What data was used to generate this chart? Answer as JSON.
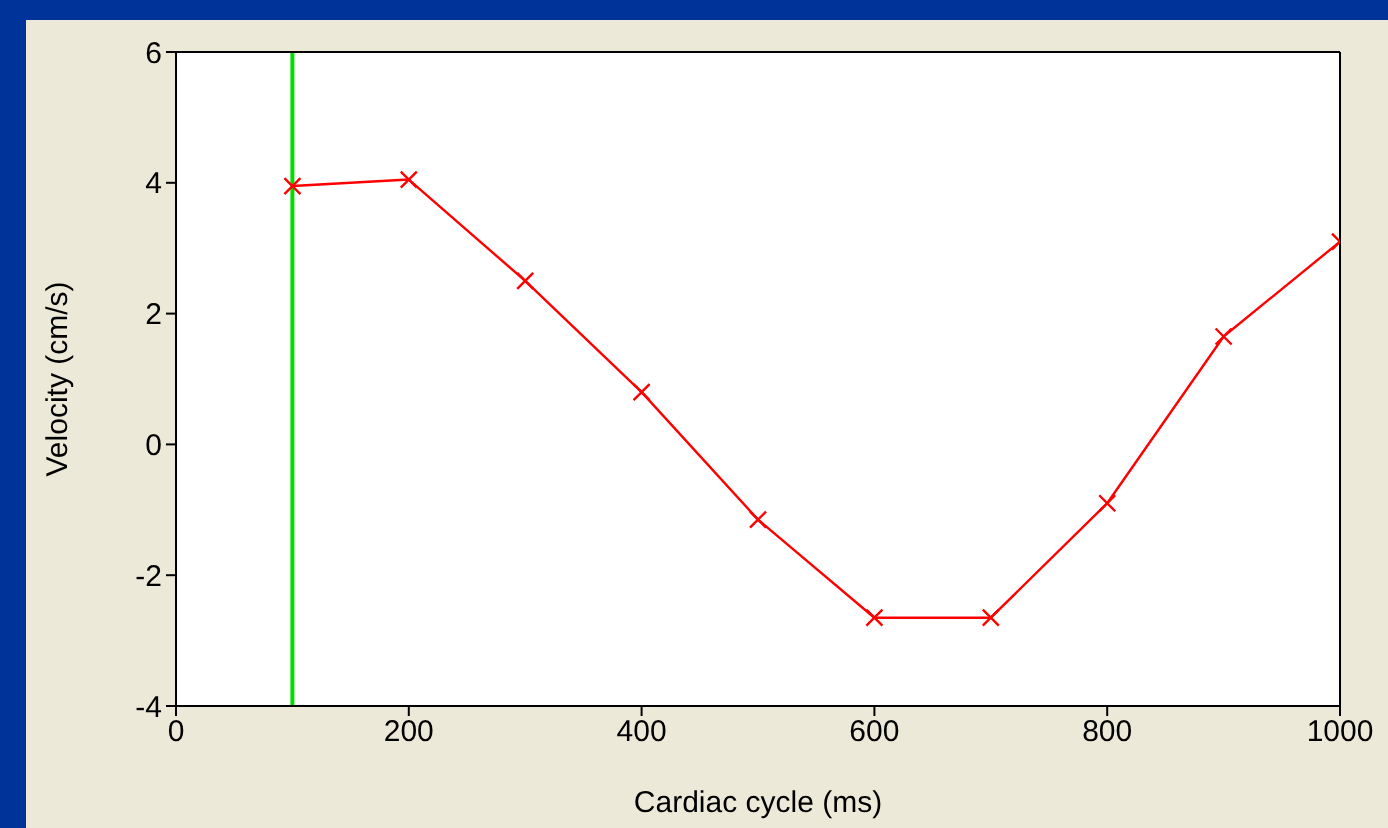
{
  "chart_data": {
    "type": "line",
    "xlabel": "Cardiac cycle (ms)",
    "ylabel": "Velocity (cm/s)",
    "x": [
      100,
      200,
      300,
      400,
      500,
      600,
      700,
      800,
      900,
      1000
    ],
    "series": [
      {
        "color": "#ff0000",
        "values": [
          3.95,
          4.05,
          2.5,
          0.8,
          -1.15,
          -2.65,
          -2.65,
          -0.9,
          1.65,
          3.1
        ]
      }
    ],
    "xlim": [
      0,
      1000
    ],
    "xticks": [
      0,
      200,
      400,
      600,
      800,
      1000
    ],
    "ylim": [
      -4,
      6
    ],
    "yticks": [
      -4,
      -2,
      0,
      2,
      4,
      6
    ],
    "ref_lines": [
      {
        "axis": "x",
        "value": 100,
        "color": "#00dd00"
      }
    ],
    "marker": "cross",
    "line_style": "solid",
    "grid": false
  }
}
